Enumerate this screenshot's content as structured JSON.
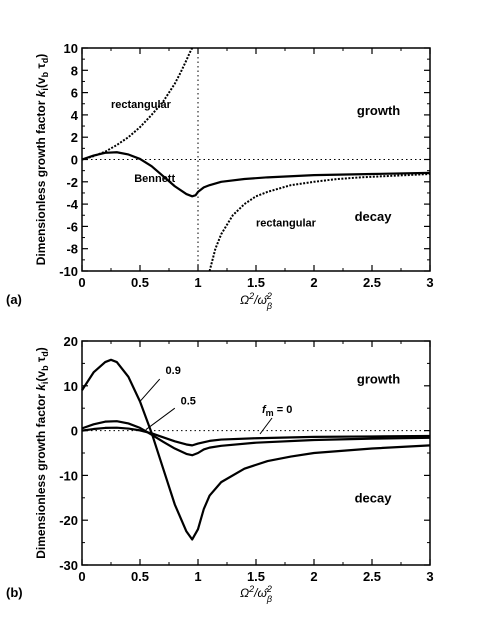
{
  "chart_data": [
    {
      "panel": "(a)",
      "type": "line",
      "ylabel": "Dimensionless growth factor k_i (v_b τ_d)",
      "xlabel": "Ω²/ω̂²_β",
      "xlim": [
        0,
        3
      ],
      "ylim": [
        -10,
        10
      ],
      "x_ticks": [
        "0",
        "0.5",
        "1",
        "1.5",
        "2",
        "2.5",
        "3"
      ],
      "y_ticks": [
        "10",
        "8",
        "6",
        "4",
        "2",
        "0",
        "-2",
        "-4",
        "-6",
        "-8",
        "-10"
      ],
      "reference_lines": {
        "y": 0,
        "x": 1
      },
      "series": [
        {
          "name": "Bennett",
          "style": "solid",
          "x": [
            0,
            0.1,
            0.2,
            0.3,
            0.4,
            0.5,
            0.6,
            0.7,
            0.8,
            0.9,
            0.95,
            0.98,
            1.0,
            1.05,
            1.1,
            1.2,
            1.4,
            1.6,
            1.8,
            2.0,
            2.5,
            3.0
          ],
          "y": [
            0,
            0.35,
            0.6,
            0.65,
            0.45,
            0.05,
            -0.6,
            -1.5,
            -2.4,
            -3.1,
            -3.3,
            -3.2,
            -2.9,
            -2.5,
            -2.3,
            -2.0,
            -1.75,
            -1.6,
            -1.5,
            -1.4,
            -1.3,
            -1.2
          ]
        },
        {
          "name": "rectangular",
          "style": "dashed",
          "branch": "growth",
          "x": [
            0,
            0.1,
            0.2,
            0.3,
            0.4,
            0.5,
            0.6,
            0.7,
            0.8,
            0.85,
            0.9,
            0.93,
            0.95
          ],
          "y": [
            0,
            0.3,
            0.7,
            1.3,
            2.0,
            2.9,
            4.0,
            5.2,
            6.8,
            7.8,
            8.9,
            9.6,
            10.0
          ]
        },
        {
          "name": "rectangular",
          "style": "dashed",
          "branch": "decay",
          "x": [
            1.1,
            1.15,
            1.2,
            1.3,
            1.4,
            1.5,
            1.6,
            1.8,
            2.0,
            2.2,
            2.4,
            2.6,
            2.8,
            3.0
          ],
          "y": [
            -10.0,
            -8.0,
            -6.7,
            -5.0,
            -4.0,
            -3.3,
            -2.9,
            -2.3,
            -2.0,
            -1.75,
            -1.6,
            -1.5,
            -1.4,
            -1.3
          ]
        }
      ],
      "annotations": [
        {
          "text": "rectangular",
          "x": 0.25,
          "y": 4.6
        },
        {
          "text": "growth",
          "x": 2.37,
          "y": 4.0
        },
        {
          "text": "Bennett",
          "x": 0.45,
          "y": -2.0
        },
        {
          "text": "decay",
          "x": 2.35,
          "y": -5.5
        },
        {
          "text": "rectangular",
          "x": 1.5,
          "y": -6.0
        }
      ]
    },
    {
      "panel": "(b)",
      "type": "line",
      "ylabel": "Dimensionless growth factor k_i (v_b τ_d)",
      "xlabel": "Ω²/ω̂²_β",
      "xlim": [
        0,
        3
      ],
      "ylim": [
        -30,
        20
      ],
      "x_ticks": [
        "0",
        "0.5",
        "1",
        "1.5",
        "2",
        "2.5",
        "3"
      ],
      "y_ticks": [
        "20",
        "10",
        "0",
        "-10",
        "-20",
        "-30"
      ],
      "reference_lines": {
        "y": 0
      },
      "series": [
        {
          "name": "0.9",
          "x": [
            0,
            0.1,
            0.2,
            0.25,
            0.3,
            0.4,
            0.5,
            0.6,
            0.7,
            0.8,
            0.9,
            0.95,
            1.0,
            1.05,
            1.1,
            1.2,
            1.4,
            1.6,
            1.8,
            2.0,
            2.5,
            3.0
          ],
          "y": [
            9.0,
            13.0,
            15.3,
            15.8,
            15.3,
            12.0,
            6.5,
            -0.5,
            -8.5,
            -16.5,
            -22.5,
            -24.3,
            -22.0,
            -17.5,
            -14.5,
            -11.5,
            -8.5,
            -6.8,
            -5.8,
            -5.0,
            -4.0,
            -3.3
          ]
        },
        {
          "name": "0.5",
          "x": [
            0,
            0.1,
            0.2,
            0.3,
            0.4,
            0.5,
            0.6,
            0.7,
            0.8,
            0.9,
            0.95,
            1.0,
            1.05,
            1.1,
            1.2,
            1.5,
            2.0,
            2.5,
            3.0
          ],
          "y": [
            0.5,
            1.4,
            2.0,
            2.1,
            1.6,
            0.6,
            -0.9,
            -2.5,
            -4.0,
            -5.2,
            -5.5,
            -5.0,
            -4.2,
            -3.8,
            -3.4,
            -2.7,
            -2.1,
            -1.8,
            -1.6
          ]
        },
        {
          "name": "f_m = 0",
          "x": [
            0,
            0.1,
            0.2,
            0.3,
            0.4,
            0.5,
            0.6,
            0.7,
            0.8,
            0.9,
            0.95,
            1.0,
            1.1,
            1.2,
            1.5,
            2.0,
            2.5,
            3.0
          ],
          "y": [
            0,
            0.35,
            0.6,
            0.65,
            0.45,
            0.05,
            -0.6,
            -1.5,
            -2.4,
            -3.1,
            -3.3,
            -2.9,
            -2.3,
            -2.0,
            -1.7,
            -1.4,
            -1.3,
            -1.2
          ]
        }
      ],
      "annotations": [
        {
          "text": "0.9",
          "x": 0.72,
          "y": 12.6
        },
        {
          "text": "0.5",
          "x": 0.85,
          "y": 5.8
        },
        {
          "text": "growth",
          "x": 2.37,
          "y": 10.5
        },
        {
          "text": "decay",
          "x": 2.35,
          "y": -16.0
        }
      ]
    }
  ],
  "labels": {
    "panel_a": "(a)",
    "panel_b": "(b)",
    "ylabel_main": "Dimensionless growth factor ",
    "ylabel_k": "k",
    "ylabel_i": "i",
    "ylabel_open": "(v",
    "ylabel_b": "b",
    "ylabel_tau": " τ",
    "ylabel_d": "d",
    "ylabel_close": ")",
    "xlabel_omega": "Ω",
    "xlabel_sup2": "2",
    "xlabel_slash": "/",
    "xlabel_omegahat": "ω̂",
    "xlabel_sup2b": "2",
    "xlabel_beta": "β",
    "fm_f": "f",
    "fm_m": "m",
    "fm_eq": " = 0"
  }
}
